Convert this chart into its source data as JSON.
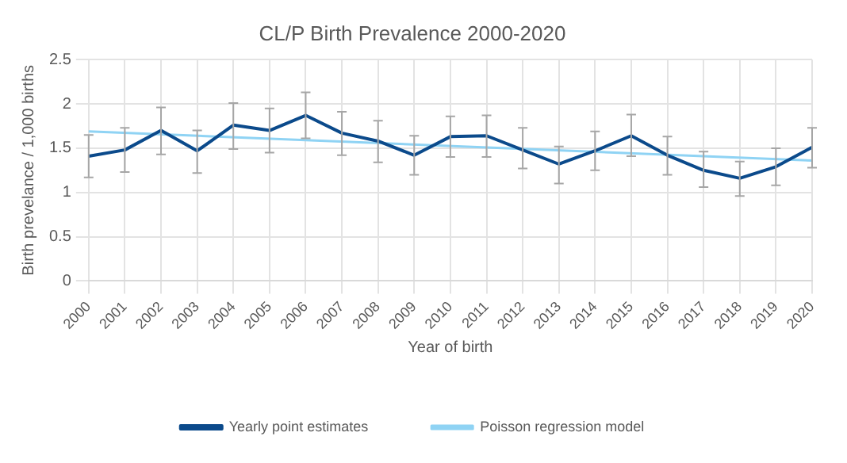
{
  "chart_data": {
    "type": "line",
    "title": "CL/P Birth Prevalence 2000-2020",
    "xlabel": "Year of birth",
    "ylabel": "Birth prevelance / 1,000 births",
    "categories": [
      "2000",
      "2001",
      "2002",
      "2003",
      "2004",
      "2005",
      "2006",
      "2007",
      "2008",
      "2009",
      "2010",
      "2011",
      "2012",
      "2013",
      "2014",
      "2015",
      "2016",
      "2017",
      "2018",
      "2019",
      "2020"
    ],
    "series": [
      {
        "name": "Yearly point estimates",
        "color": "#0b4a8b",
        "values": [
          1.41,
          1.48,
          1.7,
          1.47,
          1.76,
          1.7,
          1.87,
          1.67,
          1.58,
          1.42,
          1.63,
          1.64,
          1.48,
          1.32,
          1.47,
          1.64,
          1.42,
          1.25,
          1.16,
          1.29,
          1.51
        ],
        "errors": [
          [
            1.17,
            1.65
          ],
          [
            1.23,
            1.73
          ],
          [
            1.43,
            1.96
          ],
          [
            1.22,
            1.7
          ],
          [
            1.49,
            2.01
          ],
          [
            1.45,
            1.95
          ],
          [
            1.61,
            2.13
          ],
          [
            1.42,
            1.91
          ],
          [
            1.34,
            1.81
          ],
          [
            1.2,
            1.64
          ],
          [
            1.4,
            1.86
          ],
          [
            1.4,
            1.87
          ],
          [
            1.27,
            1.73
          ],
          [
            1.1,
            1.52
          ],
          [
            1.25,
            1.69
          ],
          [
            1.41,
            1.88
          ],
          [
            1.2,
            1.63
          ],
          [
            1.06,
            1.46
          ],
          [
            0.96,
            1.35
          ],
          [
            1.08,
            1.5
          ],
          [
            1.28,
            1.73
          ]
        ]
      },
      {
        "name": "Poisson regression model",
        "color": "#8fd3f4",
        "values": [
          1.69,
          null,
          null,
          null,
          null,
          null,
          null,
          null,
          null,
          null,
          null,
          null,
          null,
          null,
          null,
          null,
          null,
          null,
          null,
          null,
          1.36
        ]
      }
    ],
    "ylim": [
      0,
      2.5
    ],
    "yticks": [
      0,
      0.5,
      1,
      1.5,
      2,
      2.5
    ],
    "grid": true,
    "legend": "bottom",
    "marker": "none",
    "line_style": "solid"
  }
}
